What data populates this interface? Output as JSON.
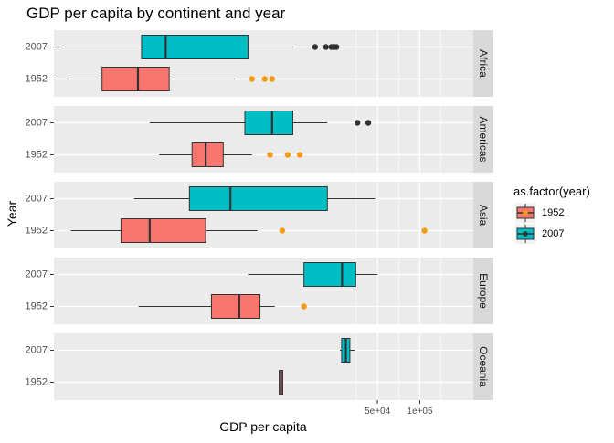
{
  "chart_data": {
    "type": "boxplot",
    "title": "GDP per capita by continent and year",
    "xlabel": "GDP per capita",
    "ylabel": "Year",
    "x_scale": "log10",
    "xlim": [
      250,
      240000
    ],
    "x_ticks": [
      {
        "value": 50000,
        "label": "5e+04"
      },
      {
        "value": 100000,
        "label": "1e+05"
      }
    ],
    "y_categories": [
      "2007",
      "1952"
    ],
    "legend": {
      "title": "as.factor(year)",
      "position": "right",
      "entries": [
        {
          "label": "1952",
          "color": "#F8766D"
        },
        {
          "label": "2007",
          "color": "#00BFC4"
        }
      ]
    },
    "outlier_colors": {
      "2007": "#333333",
      "1952": "#F39C12"
    },
    "panels": [
      {
        "facet": "Africa",
        "boxes": [
          {
            "year": "2007",
            "min": 300,
            "q1": 1050,
            "median": 1560,
            "q3": 6000,
            "max": 12500,
            "outliers": [
              18000,
              21500,
              23500,
              24500,
              25500
            ]
          },
          {
            "year": "1952",
            "min": 330,
            "q1": 550,
            "median": 990,
            "q3": 1650,
            "max": 4800,
            "outliers": [
              6400,
              7900,
              8900
            ]
          }
        ]
      },
      {
        "facet": "Americas",
        "boxes": [
          {
            "year": "2007",
            "min": 1200,
            "q1": 5700,
            "median": 8900,
            "q3": 12500,
            "max": 22000,
            "outliers": [
              36000,
              43000
            ]
          }
        ],
        "boxes_1952": [
          {
            "year": "1952",
            "min": 1400,
            "q1": 2400,
            "median": 3000,
            "q3": 4000,
            "max": 6400,
            "outliers": [
              8600,
              11500,
              14000
            ]
          }
        ]
      },
      {
        "facet": "Asia",
        "boxes": [
          {
            "year": "2007",
            "min": 930,
            "q1": 2300,
            "median": 4500,
            "q3": 22000,
            "max": 48000,
            "outliers": []
          },
          {
            "year": "1952",
            "min": 330,
            "q1": 750,
            "median": 1200,
            "q3": 3000,
            "max": 7000,
            "outliers": [
              10500,
              108000
            ]
          }
        ]
      },
      {
        "facet": "Europe",
        "boxes": [
          {
            "year": "2007",
            "min": 6000,
            "q1": 15000,
            "median": 28000,
            "q3": 35000,
            "max": 50000,
            "outliers": []
          },
          {
            "year": "1952",
            "min": 1000,
            "q1": 3300,
            "median": 5200,
            "q3": 7300,
            "max": 9300,
            "outliers": [
              15000
            ]
          }
        ]
      },
      {
        "facet": "Oceania",
        "boxes": [
          {
            "year": "2007",
            "min": 27000,
            "q1": 27800,
            "median": 29800,
            "q3": 31800,
            "max": 34500,
            "outliers": []
          },
          {
            "year": "1952",
            "min": 10000,
            "q1": 10000,
            "median": 10300,
            "q3": 10600,
            "max": 10600,
            "outliers": []
          }
        ]
      }
    ]
  }
}
